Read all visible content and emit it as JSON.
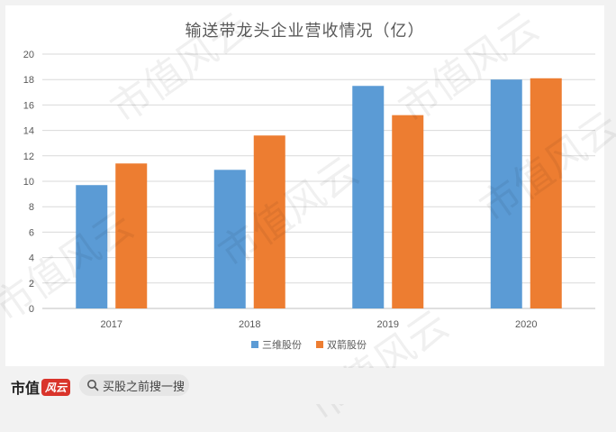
{
  "chart_data": {
    "type": "bar",
    "title": "输送带龙头企业营收情况（亿）",
    "categories": [
      "2017",
      "2018",
      "2019",
      "2020"
    ],
    "series": [
      {
        "name": "三维股份",
        "color": "#5b9bd5",
        "values": [
          9.7,
          10.9,
          17.5,
          18.0
        ]
      },
      {
        "name": "双箭股份",
        "color": "#ed7d31",
        "values": [
          11.4,
          13.6,
          15.2,
          18.1
        ]
      }
    ],
    "ylim": [
      0,
      20
    ],
    "yticks": [
      "0",
      "2",
      "4",
      "6",
      "8",
      "10",
      "12",
      "14",
      "16",
      "18",
      "20"
    ],
    "grid": true,
    "legend_position": "bottom"
  },
  "watermark": {
    "text": "市值风云"
  },
  "footer": {
    "logo_text": "市值",
    "logo_script": "风云",
    "search_label": "买股之前搜一搜",
    "search_icon": "search-icon"
  }
}
